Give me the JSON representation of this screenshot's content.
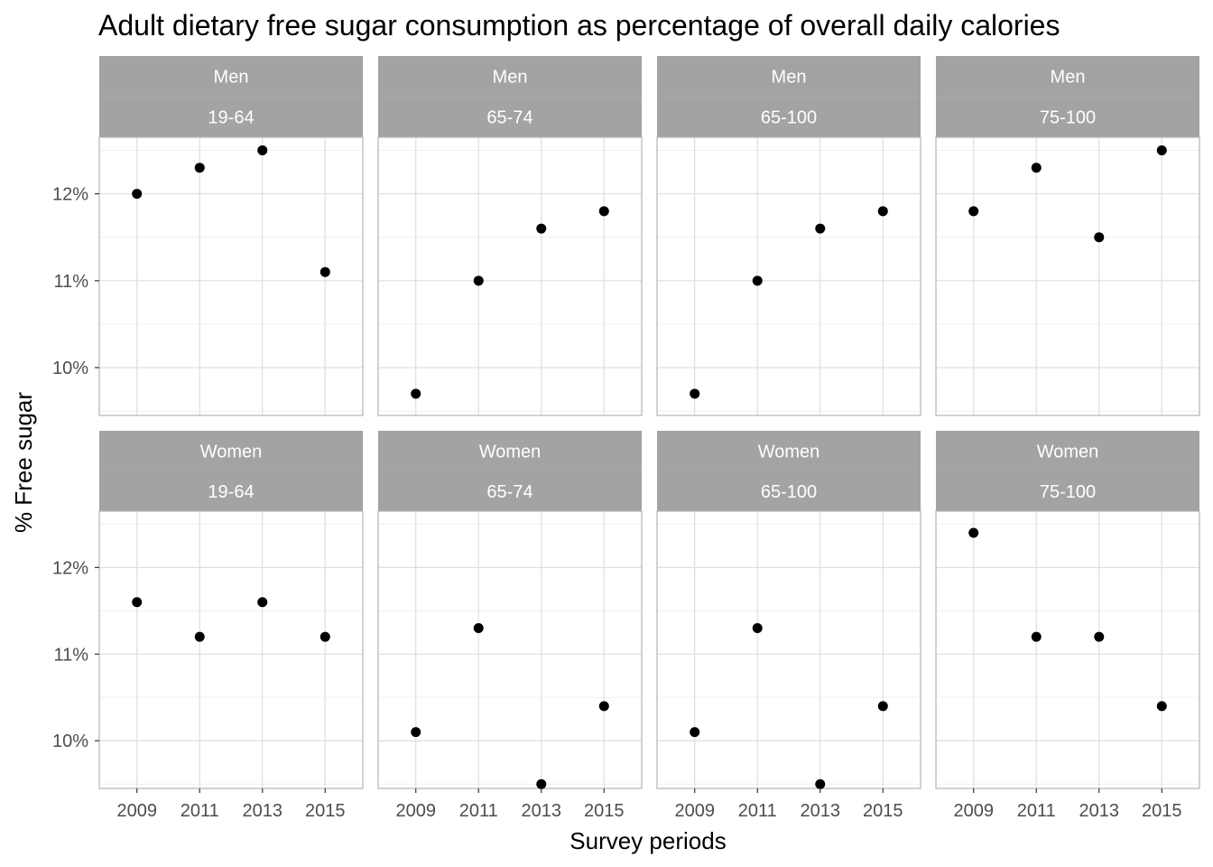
{
  "chart_data": {
    "type": "scatter",
    "title": "Adult dietary free sugar consumption as percentage of overall daily calories",
    "xlabel": "Survey periods",
    "ylabel": "% Free sugar",
    "x_categories": [
      "2009",
      "2011",
      "2013",
      "2015"
    ],
    "y_ticks": [
      10,
      11,
      12
    ],
    "y_tick_labels": [
      "10%",
      "11%",
      "12%"
    ],
    "ylim": [
      9.45,
      12.65
    ],
    "grid": true,
    "point_color": "#000000",
    "strip_fill": "#a3a3a3",
    "panels": [
      {
        "row": 0,
        "col": 0,
        "sex": "Men",
        "age": "19-64",
        "values": [
          12.0,
          12.3,
          12.5,
          11.1
        ]
      },
      {
        "row": 0,
        "col": 1,
        "sex": "Men",
        "age": "65-74",
        "values": [
          9.7,
          11.0,
          11.6,
          11.8
        ]
      },
      {
        "row": 0,
        "col": 2,
        "sex": "Men",
        "age": "65-100",
        "values": [
          9.7,
          11.0,
          11.6,
          11.8
        ]
      },
      {
        "row": 0,
        "col": 3,
        "sex": "Men",
        "age": "75-100",
        "values": [
          11.8,
          12.3,
          11.5,
          12.5
        ]
      },
      {
        "row": 1,
        "col": 0,
        "sex": "Women",
        "age": "19-64",
        "values": [
          11.6,
          11.2,
          11.6,
          11.2
        ]
      },
      {
        "row": 1,
        "col": 1,
        "sex": "Women",
        "age": "65-74",
        "values": [
          10.1,
          11.3,
          9.5,
          10.4
        ]
      },
      {
        "row": 1,
        "col": 2,
        "sex": "Women",
        "age": "65-100",
        "values": [
          10.1,
          11.3,
          9.5,
          10.4
        ]
      },
      {
        "row": 1,
        "col": 3,
        "sex": "Women",
        "age": "75-100",
        "values": [
          12.4,
          11.2,
          11.2,
          10.4
        ]
      }
    ]
  }
}
